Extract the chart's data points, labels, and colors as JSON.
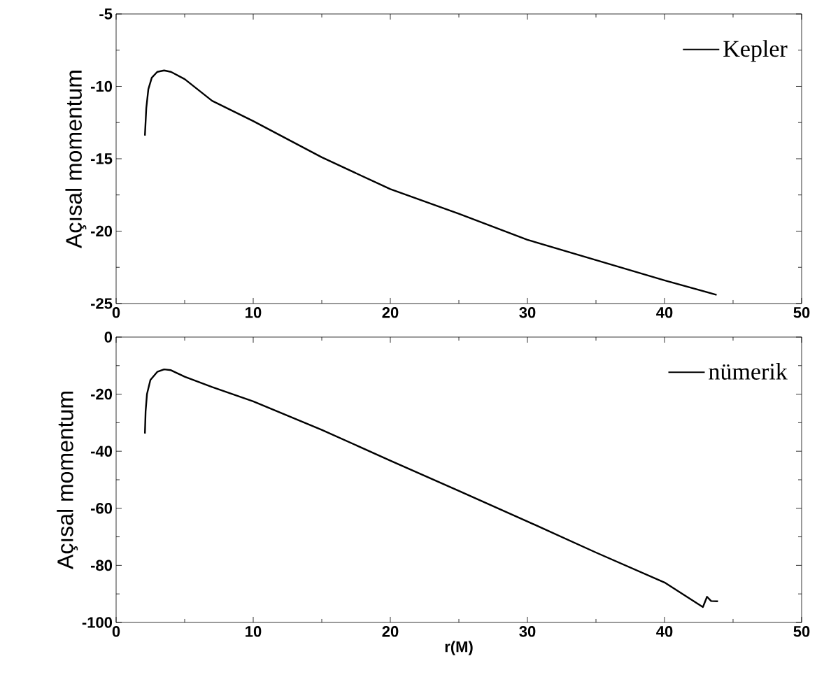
{
  "chart_data": [
    {
      "type": "line",
      "ylabel": "Açısal momentum",
      "xlim": [
        0,
        50
      ],
      "ylim": [
        -25,
        -5
      ],
      "xticks": [
        0,
        10,
        20,
        30,
        40,
        50
      ],
      "yticks": [
        -25,
        -20,
        -15,
        -10,
        -5
      ],
      "legend": "top right",
      "series": [
        {
          "name": "Kepler",
          "color": "#000000",
          "x": [
            2.1,
            2.2,
            2.35,
            2.6,
            3.0,
            3.5,
            4.0,
            5.0,
            7.0,
            10.0,
            15.0,
            20.0,
            25.0,
            30.0,
            35.0,
            40.0,
            43.8
          ],
          "values": [
            -13.4,
            -11.5,
            -10.2,
            -9.4,
            -9.0,
            -8.9,
            -9.0,
            -9.5,
            -11.0,
            -12.4,
            -14.9,
            -17.1,
            -18.8,
            -20.6,
            -22.0,
            -23.4,
            -24.4
          ]
        }
      ]
    },
    {
      "type": "line",
      "ylabel": "Açısal momentum",
      "xlabel": "r(M)",
      "xlim": [
        0,
        50
      ],
      "ylim": [
        -100,
        0
      ],
      "xticks": [
        0,
        10,
        20,
        30,
        40,
        50
      ],
      "yticks": [
        -100,
        -80,
        -60,
        -40,
        -20,
        0
      ],
      "legend": "top right",
      "series": [
        {
          "name": "nümerik",
          "color": "#000000",
          "x": [
            2.1,
            2.15,
            2.25,
            2.5,
            3.0,
            3.5,
            4.0,
            5.0,
            7.0,
            10.0,
            15.0,
            20.0,
            25.0,
            30.0,
            35.0,
            40.0,
            42.8,
            43.1,
            43.4,
            43.9
          ],
          "values": [
            -33.8,
            -26.0,
            -20.0,
            -15.0,
            -12.2,
            -11.3,
            -11.6,
            -13.9,
            -17.5,
            -22.5,
            -32.5,
            -43.3,
            -53.9,
            -64.6,
            -75.5,
            -86.0,
            -94.6,
            -91.0,
            -92.5,
            -92.6
          ]
        }
      ]
    }
  ]
}
